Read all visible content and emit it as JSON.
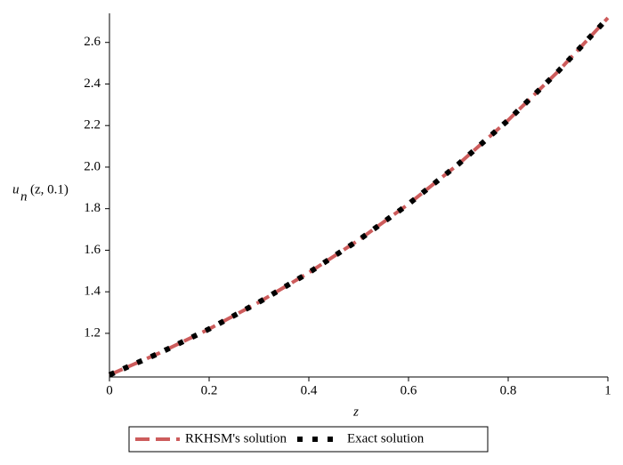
{
  "chart_data": {
    "type": "line",
    "xlabel": "z",
    "ylabel": {
      "base": "u",
      "sub": "n",
      "rest": "(z, 0.1)"
    },
    "x": [
      0,
      0.1,
      0.2,
      0.3,
      0.4,
      0.5,
      0.6,
      0.7,
      0.8,
      0.9,
      1
    ],
    "series": [
      {
        "name": "RKHSM's solution",
        "color": "#cd5c5c",
        "style": "dashed",
        "values": [
          1.0,
          1.105,
          1.221,
          1.35,
          1.492,
          1.649,
          1.822,
          2.014,
          2.226,
          2.46,
          2.718
        ]
      },
      {
        "name": "Exact solution",
        "color": "#000000",
        "style": "dotted",
        "values": [
          1.0,
          1.105,
          1.221,
          1.35,
          1.492,
          1.649,
          1.822,
          2.014,
          2.226,
          2.46,
          2.718
        ]
      }
    ],
    "xlim": [
      0,
      1
    ],
    "ylim": [
      0.99,
      2.74
    ],
    "xticks": [
      0,
      0.2,
      0.4,
      0.6,
      0.8,
      1
    ],
    "yticks": [
      1.2,
      1.4,
      1.6,
      1.8,
      {
        "value": 2,
        "label": "2.0"
      },
      2.2,
      2.4,
      2.6
    ],
    "legend": "bottom"
  }
}
